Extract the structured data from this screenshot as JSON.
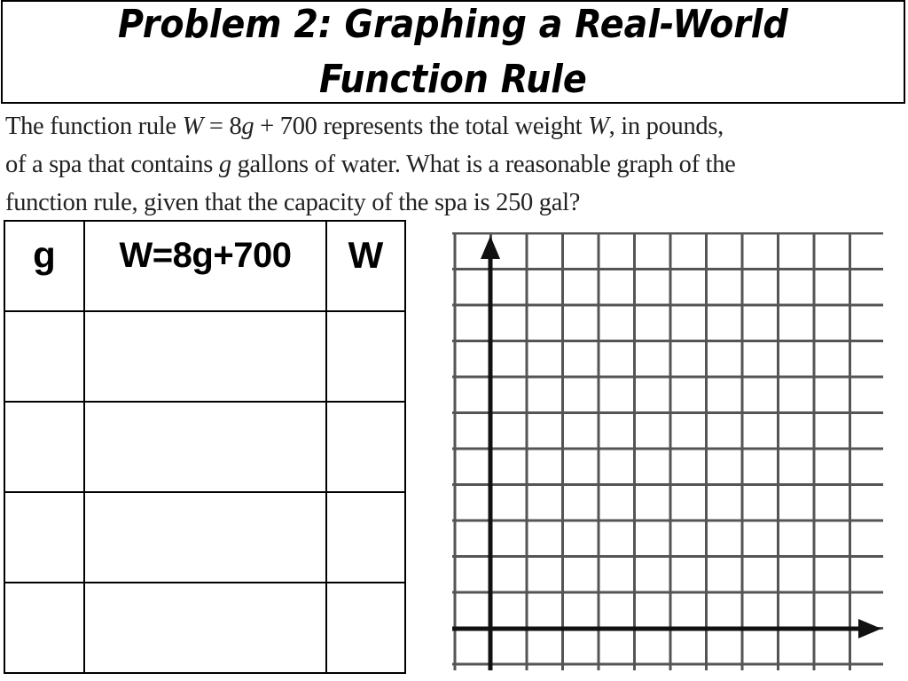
{
  "slide": {
    "title_line1": "Problem 2: Graphing a Real-World",
    "title_line2": "Function Rule"
  },
  "problem": {
    "line1": [
      {
        "text": "The function rule ",
        "italic": false
      },
      {
        "text": "W",
        "italic": true
      },
      {
        "text": " = 8",
        "italic": false
      },
      {
        "text": "g",
        "italic": true
      },
      {
        "text": " + 700 represents the total weight ",
        "italic": false
      },
      {
        "text": "W",
        "italic": true
      },
      {
        "text": ", in pounds,",
        "italic": false
      }
    ],
    "line2": [
      {
        "text": "of a spa that contains ",
        "italic": false
      },
      {
        "text": "g",
        "italic": true
      },
      {
        "text": " gallons of water. What is a reasonable graph of the",
        "italic": false
      }
    ],
    "line3": [
      {
        "text": "function rule, given that the capacity of the spa is 250 gal?",
        "italic": false
      }
    ]
  },
  "table": {
    "headers": [
      "g",
      "W=8g+700",
      "W"
    ],
    "rows": [
      [
        "",
        "",
        ""
      ],
      [
        "",
        "",
        ""
      ],
      [
        "",
        "",
        ""
      ],
      [
        "",
        "",
        ""
      ]
    ]
  },
  "graph": {
    "grid_columns": 12,
    "grid_rows": 12,
    "grid_color": "#555555",
    "axis_color": "#111111",
    "x_axis_arrow": "right",
    "y_axis_arrow": "up"
  }
}
